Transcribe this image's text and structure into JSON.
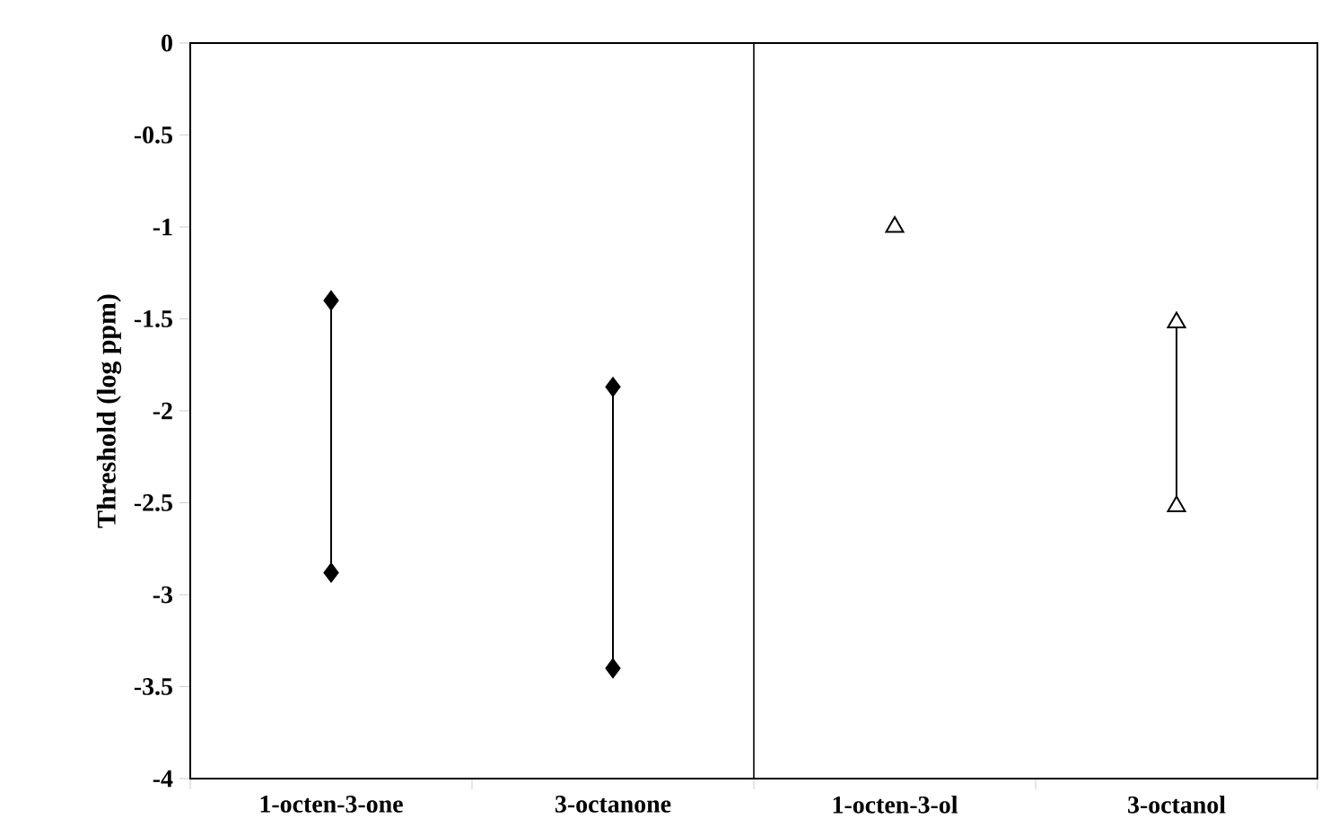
{
  "chart_data": {
    "type": "scatter",
    "ylabel": "Threshold (log ppm)",
    "categories": [
      "1-octen-3-one",
      "3-octanone",
      "1-octen-3-ol",
      "3-octanol"
    ],
    "ylim": [
      -4,
      0
    ],
    "yticks": [
      0,
      -0.5,
      -1,
      -1.5,
      -2,
      -2.5,
      -3,
      -3.5,
      -4
    ],
    "series": [
      {
        "marker": "diamond",
        "color": "#000000",
        "values": [
          -1.4,
          -1.87,
          null,
          null
        ]
      },
      {
        "marker": "diamond",
        "color": "#000000",
        "values": [
          -2.88,
          -3.4,
          null,
          null
        ]
      },
      {
        "marker": "triangle",
        "color": "#000000",
        "values": [
          null,
          null,
          -1.0,
          -1.52
        ]
      },
      {
        "marker": "triangle",
        "color": "#000000",
        "values": [
          null,
          null,
          null,
          -2.52
        ]
      }
    ]
  }
}
